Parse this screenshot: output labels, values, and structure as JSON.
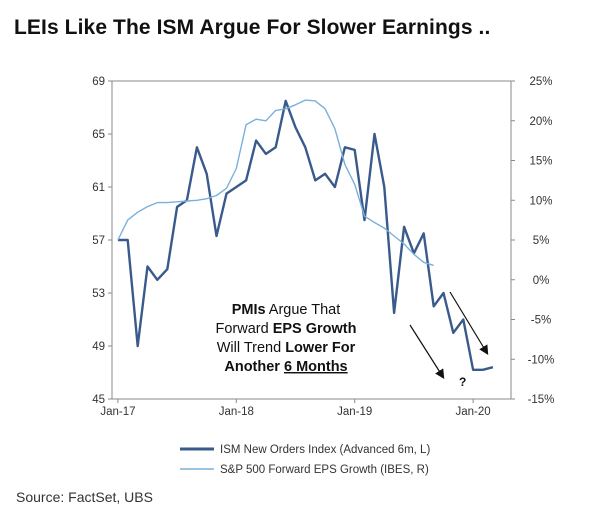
{
  "chart_data": {
    "type": "line",
    "title": "LEIs Like The ISM Argue For Slower Earnings ..",
    "source": "Source:  FactSet, UBS",
    "x_tick_labels": [
      "Jan-17",
      "Jan-18",
      "Jan-19",
      "Jan-20"
    ],
    "y_left": {
      "ylim": [
        45,
        69
      ],
      "ticks": [
        "45",
        "49",
        "53",
        "57",
        "61",
        "65",
        "69"
      ]
    },
    "y_right": {
      "ylim": [
        -15,
        25
      ],
      "ticks": [
        "-15%",
        "-10%",
        "-5%",
        "0%",
        "5%",
        "10%",
        "15%",
        "20%",
        "25%"
      ]
    },
    "grid": false,
    "legend_position": "bottom",
    "series": [
      {
        "name": "ISM New Orders Index (Advanced 6m, L)",
        "axis": "left",
        "color": "#3a5a8c",
        "x": [
          2017.0,
          2017.083,
          2017.167,
          2017.25,
          2017.333,
          2017.417,
          2017.5,
          2017.583,
          2017.667,
          2017.75,
          2017.833,
          2017.917,
          2018.0,
          2018.083,
          2018.167,
          2018.25,
          2018.333,
          2018.417,
          2018.5,
          2018.583,
          2018.667,
          2018.75,
          2018.833,
          2018.917,
          2019.0,
          2019.083,
          2019.167,
          2019.25,
          2019.333,
          2019.417,
          2019.5,
          2019.583,
          2019.667,
          2019.75,
          2019.833,
          2019.917,
          2020.0,
          2020.083,
          2020.167
        ],
        "values": [
          57.0,
          57.0,
          49.0,
          55.0,
          54.0,
          54.8,
          59.5,
          60.0,
          64.0,
          62.0,
          57.3,
          60.5,
          61.0,
          61.5,
          64.5,
          63.5,
          64.0,
          67.5,
          65.5,
          64.0,
          61.5,
          62.0,
          61.0,
          64.0,
          63.8,
          58.5,
          65.0,
          61.0,
          51.5,
          58.0,
          56.0,
          57.5,
          52.0,
          53.0,
          50.0,
          51.0,
          47.2,
          47.2,
          47.4
        ]
      },
      {
        "name": "S&P 500 Forward EPS Growth (IBES, R)",
        "axis": "right",
        "color": "#7ab0da",
        "x": [
          2017.0,
          2017.083,
          2017.167,
          2017.25,
          2017.333,
          2017.417,
          2017.5,
          2017.583,
          2017.667,
          2017.75,
          2017.833,
          2017.917,
          2018.0,
          2018.083,
          2018.167,
          2018.25,
          2018.333,
          2018.417,
          2018.5,
          2018.583,
          2018.667,
          2018.75,
          2018.833,
          2018.917,
          2019.0,
          2019.083,
          2019.167,
          2019.25,
          2019.333,
          2019.417,
          2019.5,
          2019.583,
          2019.667
        ],
        "values": [
          5.0,
          7.5,
          8.5,
          9.2,
          9.7,
          9.7,
          9.8,
          9.9,
          10.0,
          10.2,
          10.6,
          11.5,
          14.0,
          19.5,
          20.2,
          20.0,
          21.3,
          21.5,
          22.0,
          22.6,
          22.5,
          21.5,
          19.0,
          14.5,
          12.0,
          8.0,
          7.2,
          6.5,
          5.5,
          4.5,
          3.2,
          2.2,
          1.8
        ]
      }
    ],
    "annotations": {
      "text_lines": [
        [
          {
            "text": "PMIs",
            "bold": true
          },
          {
            "text": " Argue That",
            "bold": false
          }
        ],
        [
          {
            "text": "Forward ",
            "bold": false
          },
          {
            "text": "EPS Growth",
            "bold": true
          }
        ],
        [
          {
            "text": "Will Trend ",
            "bold": false
          },
          {
            "text": "Lower For",
            "bold": true
          }
        ],
        [
          {
            "text": "Another ",
            "bold": true
          },
          {
            "text": "6 Months",
            "bold": true,
            "underline": true
          }
        ]
      ],
      "question_mark": "?"
    }
  }
}
